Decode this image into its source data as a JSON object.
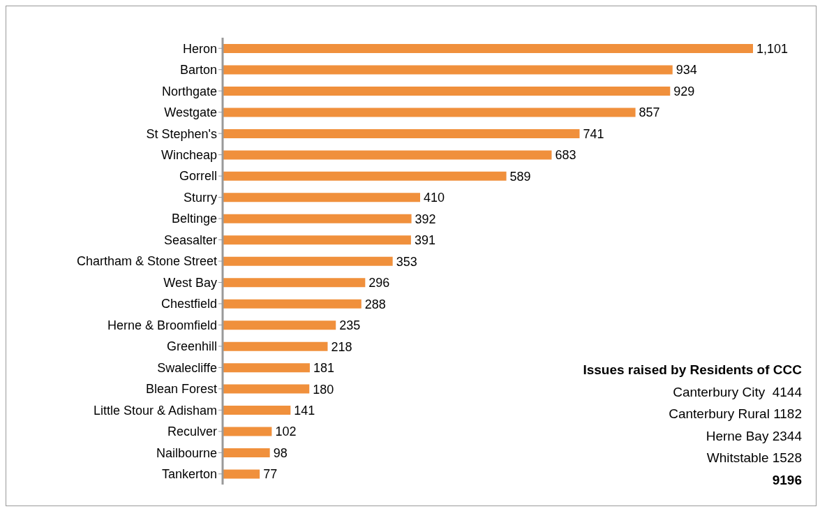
{
  "chart_data": {
    "type": "bar",
    "orientation": "horizontal",
    "categories": [
      "Heron",
      "Barton",
      "Northgate",
      "Westgate",
      "St Stephen's",
      "Wincheap",
      "Gorrell",
      "Sturry",
      "Beltinge",
      "Seasalter",
      "Chartham & Stone Street",
      "West Bay",
      "Chestfield",
      "Herne & Broomfield",
      "Greenhill",
      "Swalecliffe",
      "Blean Forest",
      "Little Stour & Adisham",
      "Reculver",
      "Nailbourne",
      "Tankerton"
    ],
    "values": [
      1101,
      934,
      929,
      857,
      741,
      683,
      589,
      410,
      392,
      391,
      353,
      296,
      288,
      235,
      218,
      181,
      180,
      141,
      102,
      98,
      77
    ],
    "color": "#f0903c",
    "value_labels": [
      "1,101",
      "934",
      "929",
      "857",
      "741",
      "683",
      "589",
      "410",
      "392",
      "391",
      "353",
      "296",
      "288",
      "235",
      "218",
      "181",
      "180",
      "141",
      "102",
      "98",
      "77"
    ],
    "annotations": [
      "Issues raised by Residents of CCC",
      "Canterbury City  4144",
      "Canterbury Rural 1182",
      "Herne Bay 2344",
      "Whitstable 1528",
      "9196"
    ]
  }
}
